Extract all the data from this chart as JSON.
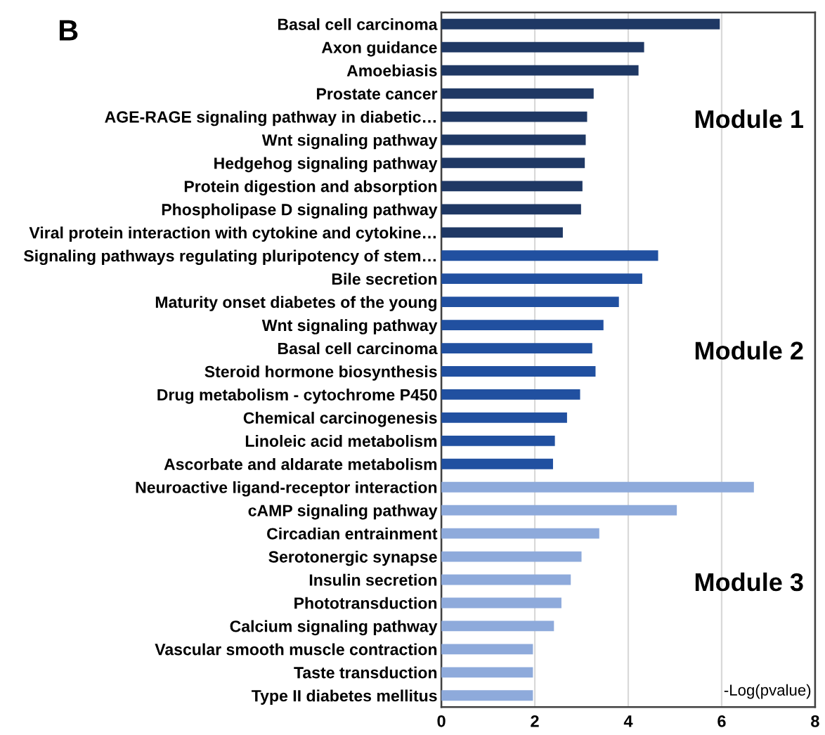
{
  "chart_data": {
    "type": "bar",
    "orientation": "horizontal",
    "title": "B",
    "xlabel": "-Log(pvalue)",
    "categories": [
      "Basal cell carcinoma",
      "Axon guidance",
      "Amoebiasis",
      "Prostate cancer",
      "AGE-RAGE signaling pathway in diabetic…",
      "Wnt signaling pathway",
      "Hedgehog signaling pathway",
      "Protein digestion and absorption",
      "Phospholipase D signaling pathway",
      "Viral protein interaction with cytokine and cytokine…",
      "Signaling pathways regulating pluripotency of stem…",
      "Bile secretion",
      "Maturity onset diabetes of the young",
      "Wnt signaling pathway",
      "Basal cell carcinoma",
      "Steroid hormone biosynthesis",
      "Drug metabolism - cytochrome P450",
      "Chemical carcinogenesis",
      "Linoleic acid metabolism",
      "Ascorbate and aldarate metabolism",
      "Neuroactive ligand-receptor interaction",
      "cAMP signaling pathway",
      "Circadian entrainment",
      "Serotonergic synapse",
      "Insulin secretion",
      "Phototransduction",
      "Calcium signaling pathway",
      "Vascular smooth muscle contraction",
      "Taste transduction",
      "Type II diabetes mellitus"
    ],
    "values": [
      5.96,
      4.34,
      4.22,
      3.26,
      3.12,
      3.09,
      3.07,
      3.02,
      2.99,
      2.6,
      4.64,
      4.3,
      3.8,
      3.47,
      3.23,
      3.3,
      2.97,
      2.69,
      2.43,
      2.39,
      6.69,
      5.04,
      3.38,
      3.0,
      2.77,
      2.57,
      2.41,
      1.96,
      1.96,
      1.96
    ],
    "colors": [
      "#1f3864",
      "#1f3864",
      "#1f3864",
      "#1f3864",
      "#1f3864",
      "#1f3864",
      "#1f3864",
      "#1f3864",
      "#1f3864",
      "#1f3864",
      "#2150a0",
      "#2150a0",
      "#2150a0",
      "#2150a0",
      "#2150a0",
      "#2150a0",
      "#2150a0",
      "#2150a0",
      "#2150a0",
      "#2150a0",
      "#8eaadb",
      "#8eaadb",
      "#8eaadb",
      "#8eaadb",
      "#8eaadb",
      "#8eaadb",
      "#8eaadb",
      "#8eaadb",
      "#8eaadb",
      "#8eaadb"
    ],
    "xlim": [
      0,
      8
    ],
    "xticks": [
      0,
      2,
      4,
      6,
      8
    ],
    "grid": "x",
    "annotations": [
      "Module 1",
      "Module 2",
      "Module 3"
    ]
  }
}
